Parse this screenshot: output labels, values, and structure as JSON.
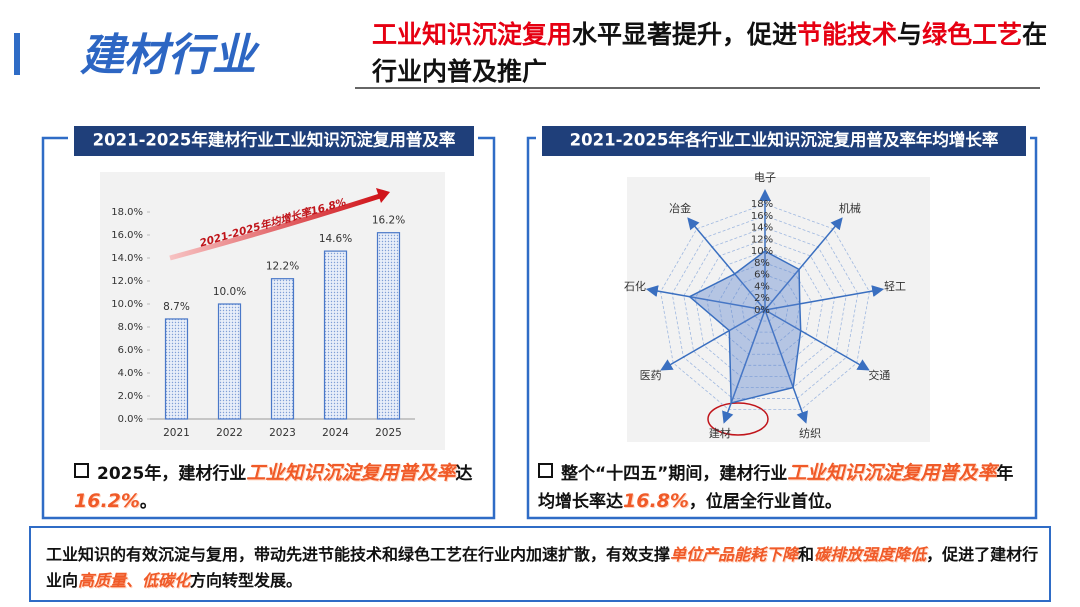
{
  "header": {
    "section": "建材行业",
    "headline": [
      {
        "text": "工业知识沉淀复用",
        "highlight": true
      },
      {
        "text": "水平显著提升，促进",
        "highlight": false
      },
      {
        "text": "节能技术",
        "highlight": true
      },
      {
        "text": "与",
        "highlight": false
      },
      {
        "text": "绿色工艺",
        "highlight": true
      },
      {
        "text": "在行业内普及推广",
        "highlight": false
      }
    ]
  },
  "chart_data": [
    {
      "type": "bar",
      "title": "2021-2025年建材行业工业知识沉淀复用普及率",
      "categories": [
        "2021",
        "2022",
        "2023",
        "2024",
        "2025"
      ],
      "values": [
        8.7,
        10.0,
        12.2,
        14.6,
        16.2
      ],
      "value_labels": [
        "8.7%",
        "10.0%",
        "12.2%",
        "14.6%",
        "16.2%"
      ],
      "color": "#4a78c8",
      "ylim": [
        0,
        18
      ],
      "yticks": [
        {
          "value": 0,
          "label": "0.0%"
        },
        {
          "value": 2,
          "label": "2.0%"
        },
        {
          "value": 4,
          "label": "4.0%"
        },
        {
          "value": 6,
          "label": "6.0%"
        },
        {
          "value": 8,
          "label": "8.0%"
        },
        {
          "value": 10,
          "label": "10.0%"
        },
        {
          "value": 12,
          "label": "12.0%"
        },
        {
          "value": 14,
          "label": "14.0%"
        },
        {
          "value": 16,
          "label": "16.0%"
        },
        {
          "value": 18,
          "label": "18.0%"
        }
      ],
      "annotation": "2021-2025年均增长率16.8%"
    },
    {
      "type": "radar",
      "title": "2021-2025年各行业工业知识沉淀复用普及率年均增长率",
      "categories": [
        "电子",
        "机械",
        "轻工",
        "交通",
        "纺织",
        "建材",
        "医药",
        "石化",
        "冶金"
      ],
      "values": [
        10,
        9,
        6,
        7,
        14,
        16.8,
        7,
        13,
        8
      ],
      "color": "#3a6fc0",
      "rlim": [
        0,
        18
      ],
      "rticks": [
        {
          "value": 0,
          "label": "0%"
        },
        {
          "value": 2,
          "label": "2%"
        },
        {
          "value": 4,
          "label": "4%"
        },
        {
          "value": 6,
          "label": "6%"
        },
        {
          "value": 8,
          "label": "8%"
        },
        {
          "value": 10,
          "label": "10%"
        },
        {
          "value": 12,
          "label": "12%"
        },
        {
          "value": 14,
          "label": "14%"
        },
        {
          "value": 16,
          "label": "16%"
        },
        {
          "value": 18,
          "label": "18%"
        }
      ]
    }
  ],
  "notes": [
    {
      "segments": [
        {
          "text": "2025年，建材行业",
          "highlight": false
        },
        {
          "text": "工业知识沉淀复用普及率",
          "highlight": true
        },
        {
          "text": "达",
          "highlight": false
        },
        {
          "text": "16.2%",
          "highlight": true
        },
        {
          "text": "。",
          "highlight": false
        }
      ]
    },
    {
      "segments": [
        {
          "text": "整个“十四五”期间，建材行业",
          "highlight": false
        },
        {
          "text": "工业知识沉淀复用普及率",
          "highlight": true
        },
        {
          "text": "年均增长率达",
          "highlight": false
        },
        {
          "text": "16.8%",
          "highlight": true
        },
        {
          "text": "，位居全行业首位。",
          "highlight": false
        }
      ]
    }
  ],
  "summary": {
    "segments": [
      {
        "text": "工业知识的有效沉淀与复用，带动先进节能技术和绿色工艺在行业内加速扩散，有效支撑",
        "highlight": false
      },
      {
        "text": "单位产品能耗下降",
        "highlight": true
      },
      {
        "text": "和",
        "highlight": false
      },
      {
        "text": "碳排放强度降低",
        "highlight": true
      },
      {
        "text": "，促进了建材行业向",
        "highlight": false
      },
      {
        "text": "高质量、低碳化",
        "highlight": true
      },
      {
        "text": "方向转型发展。",
        "highlight": false
      }
    ]
  }
}
